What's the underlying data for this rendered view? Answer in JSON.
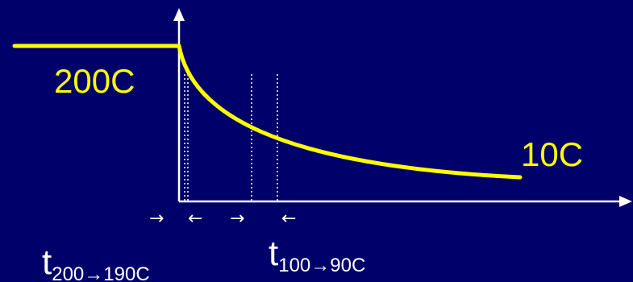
{
  "colors": {
    "background": "#00006b",
    "curve": "#ffff00",
    "axes": "#ffffff",
    "labels": "#ffff00",
    "annotations": "#ffffff"
  },
  "labels": {
    "initial_temp": "200C",
    "final_temp": "10C"
  },
  "annotations": {
    "interval_1": {
      "base": "t",
      "subscript": "200→190C"
    },
    "interval_2": {
      "base": "t",
      "subscript": "100→90C"
    }
  },
  "interval_arrows": {
    "glyph_right": "→",
    "glyph_left": "←"
  },
  "icons": {
    "y_axis_end": "arrow-up-icon",
    "x_axis_end": "arrow-right-icon"
  }
}
